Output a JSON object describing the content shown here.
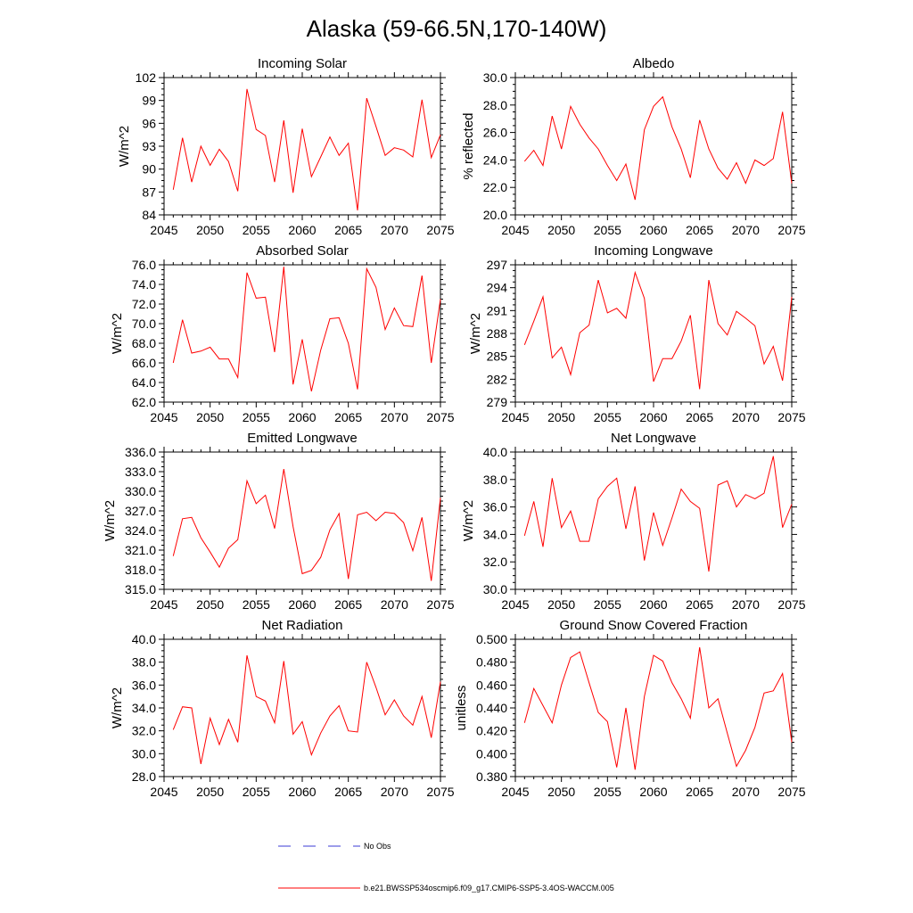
{
  "figure_title": "Alaska (59-66.5N,170-140W)",
  "colors": {
    "model": "#ff0000",
    "obs": "#3b3bd6",
    "axis": "#000000"
  },
  "legend": {
    "obs_label": "No Obs",
    "model_label": "b.e21.BWSSP534oscmip6.f09_g17.CMIP6-SSP5-3.4OS-WACCM.005"
  },
  "chart_data": [
    {
      "type": "line",
      "title": "Incoming Solar",
      "ylabel": "W/m^2",
      "xlabel": "",
      "xlim": [
        2045,
        2075
      ],
      "ylim": [
        84,
        102
      ],
      "xticks": [
        2045,
        2050,
        2055,
        2060,
        2065,
        2070,
        2075
      ],
      "yticks": [
        84,
        87,
        90,
        93,
        96,
        99,
        102
      ],
      "ydec": 0,
      "x": [
        2046,
        2047,
        2048,
        2049,
        2050,
        2051,
        2052,
        2053,
        2054,
        2055,
        2056,
        2057,
        2058,
        2059,
        2060,
        2061,
        2062,
        2063,
        2064,
        2065,
        2066,
        2067,
        2068,
        2069,
        2070,
        2071,
        2072,
        2073,
        2074,
        2075
      ],
      "series": [
        {
          "name": "model",
          "values": [
            87.3,
            94.1,
            88.3,
            93.0,
            90.5,
            92.6,
            91.0,
            87.1,
            100.5,
            95.2,
            94.4,
            88.3,
            96.4,
            86.9,
            95.3,
            89.0,
            91.6,
            94.2,
            91.8,
            93.4,
            84.6,
            99.3,
            95.6,
            91.8,
            92.8,
            92.5,
            91.6,
            99.1,
            91.5,
            94.5
          ]
        }
      ]
    },
    {
      "type": "line",
      "title": "Albedo",
      "ylabel": "% reflected",
      "xlabel": "",
      "xlim": [
        2045,
        2075
      ],
      "ylim": [
        20,
        30
      ],
      "xticks": [
        2045,
        2050,
        2055,
        2060,
        2065,
        2070,
        2075
      ],
      "yticks": [
        20,
        22,
        24,
        26,
        28,
        30
      ],
      "ydec": 1,
      "x": [
        2046,
        2047,
        2048,
        2049,
        2050,
        2051,
        2052,
        2053,
        2054,
        2055,
        2056,
        2057,
        2058,
        2059,
        2060,
        2061,
        2062,
        2063,
        2064,
        2065,
        2066,
        2067,
        2068,
        2069,
        2070,
        2071,
        2072,
        2073,
        2074,
        2075
      ],
      "series": [
        {
          "name": "model",
          "values": [
            23.9,
            24.7,
            23.6,
            27.2,
            24.8,
            27.9,
            26.6,
            25.6,
            24.8,
            23.6,
            22.5,
            23.7,
            21.1,
            26.2,
            27.9,
            28.6,
            26.4,
            24.8,
            22.7,
            26.9,
            24.8,
            23.4,
            22.6,
            23.8,
            22.3,
            24.0,
            23.6,
            24.1,
            27.5,
            22.3
          ]
        }
      ]
    },
    {
      "type": "line",
      "title": "Absorbed Solar",
      "ylabel": "W/m^2",
      "xlabel": "",
      "xlim": [
        2045,
        2075
      ],
      "ylim": [
        62,
        76
      ],
      "xticks": [
        2045,
        2050,
        2055,
        2060,
        2065,
        2070,
        2075
      ],
      "yticks": [
        62,
        64,
        66,
        68,
        70,
        72,
        74,
        76
      ],
      "ydec": 1,
      "x": [
        2046,
        2047,
        2048,
        2049,
        2050,
        2051,
        2052,
        2053,
        2054,
        2055,
        2056,
        2057,
        2058,
        2059,
        2060,
        2061,
        2062,
        2063,
        2064,
        2065,
        2066,
        2067,
        2068,
        2069,
        2070,
        2071,
        2072,
        2073,
        2074,
        2075
      ],
      "series": [
        {
          "name": "model",
          "values": [
            66.0,
            70.4,
            67.0,
            67.2,
            67.6,
            66.4,
            66.4,
            64.5,
            75.2,
            72.6,
            72.7,
            67.1,
            75.8,
            63.8,
            68.4,
            63.1,
            67.3,
            70.5,
            70.6,
            68.0,
            63.3,
            75.6,
            73.7,
            69.4,
            71.6,
            69.8,
            69.7,
            74.9,
            66.0,
            72.5
          ]
        }
      ]
    },
    {
      "type": "line",
      "title": "Incoming Longwave",
      "ylabel": "W/m^2",
      "xlabel": "",
      "xlim": [
        2045,
        2075
      ],
      "ylim": [
        279,
        297
      ],
      "xticks": [
        2045,
        2050,
        2055,
        2060,
        2065,
        2070,
        2075
      ],
      "yticks": [
        279,
        282,
        285,
        288,
        291,
        294,
        297
      ],
      "ydec": 0,
      "x": [
        2046,
        2047,
        2048,
        2049,
        2050,
        2051,
        2052,
        2053,
        2054,
        2055,
        2056,
        2057,
        2058,
        2059,
        2060,
        2061,
        2062,
        2063,
        2064,
        2065,
        2066,
        2067,
        2068,
        2069,
        2070,
        2071,
        2072,
        2073,
        2074,
        2075
      ],
      "series": [
        {
          "name": "model",
          "values": [
            286.5,
            289.6,
            292.8,
            284.8,
            286.2,
            282.6,
            288.1,
            289.1,
            295.0,
            290.7,
            291.3,
            290.0,
            296.0,
            292.6,
            281.7,
            284.7,
            284.7,
            287.0,
            290.4,
            280.7,
            295.0,
            289.3,
            287.8,
            290.9,
            290.0,
            289.0,
            284.0,
            286.3,
            281.8,
            292.8
          ]
        }
      ]
    },
    {
      "type": "line",
      "title": "Emitted Longwave",
      "ylabel": "W/m^2",
      "xlabel": "",
      "xlim": [
        2045,
        2075
      ],
      "ylim": [
        315,
        336
      ],
      "xticks": [
        2045,
        2050,
        2055,
        2060,
        2065,
        2070,
        2075
      ],
      "yticks": [
        315,
        318,
        321,
        324,
        327,
        330,
        333,
        336
      ],
      "ydec": 1,
      "x": [
        2046,
        2047,
        2048,
        2049,
        2050,
        2051,
        2052,
        2053,
        2054,
        2055,
        2056,
        2057,
        2058,
        2059,
        2060,
        2061,
        2062,
        2063,
        2064,
        2065,
        2066,
        2067,
        2068,
        2069,
        2070,
        2071,
        2072,
        2073,
        2074,
        2075
      ],
      "series": [
        {
          "name": "model",
          "values": [
            320.1,
            325.8,
            326.0,
            322.9,
            320.7,
            318.4,
            321.3,
            322.6,
            331.6,
            328.1,
            329.4,
            324.3,
            333.4,
            324.6,
            317.4,
            317.9,
            319.9,
            324.1,
            326.6,
            316.6,
            326.4,
            326.8,
            325.5,
            326.8,
            326.6,
            325.2,
            320.9,
            326.0,
            316.3,
            329.0
          ]
        }
      ]
    },
    {
      "type": "line",
      "title": "Net Longwave",
      "ylabel": "W/m^2",
      "xlabel": "",
      "xlim": [
        2045,
        2075
      ],
      "ylim": [
        30,
        40
      ],
      "xticks": [
        2045,
        2050,
        2055,
        2060,
        2065,
        2070,
        2075
      ],
      "yticks": [
        30,
        32,
        34,
        36,
        38,
        40
      ],
      "ydec": 1,
      "x": [
        2046,
        2047,
        2048,
        2049,
        2050,
        2051,
        2052,
        2053,
        2054,
        2055,
        2056,
        2057,
        2058,
        2059,
        2060,
        2061,
        2062,
        2063,
        2064,
        2065,
        2066,
        2067,
        2068,
        2069,
        2070,
        2071,
        2072,
        2073,
        2074,
        2075
      ],
      "series": [
        {
          "name": "model",
          "values": [
            33.9,
            36.4,
            33.1,
            38.1,
            34.5,
            35.7,
            33.5,
            33.5,
            36.6,
            37.5,
            38.1,
            34.4,
            37.5,
            32.1,
            35.6,
            33.2,
            35.2,
            37.3,
            36.4,
            35.9,
            31.3,
            37.6,
            37.9,
            36.0,
            36.9,
            36.6,
            37.0,
            39.7,
            34.5,
            36.2
          ]
        }
      ]
    },
    {
      "type": "line",
      "title": "Net Radiation",
      "ylabel": "W/m^2",
      "xlabel": "",
      "xlim": [
        2045,
        2075
      ],
      "ylim": [
        28,
        40
      ],
      "xticks": [
        2045,
        2050,
        2055,
        2060,
        2065,
        2070,
        2075
      ],
      "yticks": [
        28,
        30,
        32,
        34,
        36,
        38,
        40
      ],
      "ydec": 1,
      "x": [
        2046,
        2047,
        2048,
        2049,
        2050,
        2051,
        2052,
        2053,
        2054,
        2055,
        2056,
        2057,
        2058,
        2059,
        2060,
        2061,
        2062,
        2063,
        2064,
        2065,
        2066,
        2067,
        2068,
        2069,
        2070,
        2071,
        2072,
        2073,
        2074,
        2075
      ],
      "series": [
        {
          "name": "model",
          "values": [
            32.1,
            34.1,
            34.0,
            29.1,
            33.1,
            30.8,
            33.0,
            31.0,
            38.6,
            35.0,
            34.6,
            32.7,
            38.1,
            31.7,
            32.8,
            29.9,
            31.8,
            33.3,
            34.2,
            32.0,
            31.9,
            38.0,
            35.8,
            33.4,
            34.7,
            33.3,
            32.5,
            35.0,
            31.4,
            36.3
          ]
        }
      ]
    },
    {
      "type": "line",
      "title": "Ground Snow Covered Fraction",
      "ylabel": "unitless",
      "xlabel": "",
      "xlim": [
        2045,
        2075
      ],
      "ylim": [
        0.38,
        0.5
      ],
      "xticks": [
        2045,
        2050,
        2055,
        2060,
        2065,
        2070,
        2075
      ],
      "yticks": [
        0.38,
        0.4,
        0.42,
        0.44,
        0.46,
        0.48,
        0.5
      ],
      "ydec": 3,
      "x": [
        2046,
        2047,
        2048,
        2049,
        2050,
        2051,
        2052,
        2053,
        2054,
        2055,
        2056,
        2057,
        2058,
        2059,
        2060,
        2061,
        2062,
        2063,
        2064,
        2065,
        2066,
        2067,
        2068,
        2069,
        2070,
        2071,
        2072,
        2073,
        2074,
        2075
      ],
      "series": [
        {
          "name": "model",
          "values": [
            0.427,
            0.457,
            0.442,
            0.427,
            0.46,
            0.484,
            0.489,
            0.462,
            0.436,
            0.428,
            0.388,
            0.44,
            0.386,
            0.45,
            0.486,
            0.481,
            0.462,
            0.448,
            0.431,
            0.493,
            0.44,
            0.448,
            0.418,
            0.389,
            0.403,
            0.423,
            0.453,
            0.455,
            0.47,
            0.41
          ]
        }
      ]
    }
  ]
}
